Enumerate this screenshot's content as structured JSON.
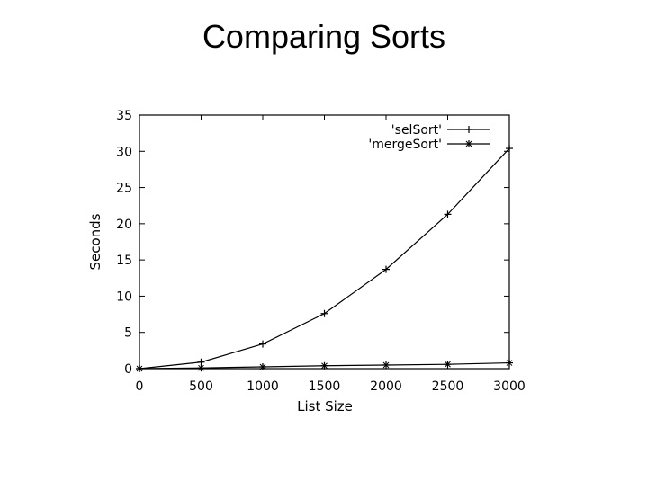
{
  "slide": {
    "title": "Comparing Sorts"
  },
  "chart_data": {
    "type": "line",
    "title": "",
    "xlabel": "List Size",
    "ylabel": "Seconds",
    "xlim": [
      0,
      3000
    ],
    "ylim": [
      0,
      35
    ],
    "x_ticks": [
      0,
      500,
      1000,
      1500,
      2000,
      2500,
      3000
    ],
    "y_ticks": [
      0,
      5,
      10,
      15,
      20,
      25,
      30,
      35
    ],
    "legend_position": "top-right",
    "grid": false,
    "colors": {
      "line": "#000000",
      "background": "#ffffff"
    },
    "series": [
      {
        "name": "'selSort'",
        "marker": "plus",
        "x": [
          0,
          500,
          1000,
          1500,
          2000,
          2500,
          3000
        ],
        "y": [
          0,
          0.9,
          3.4,
          7.6,
          13.7,
          21.3,
          30.4
        ]
      },
      {
        "name": "'mergeSort'",
        "marker": "star",
        "x": [
          0,
          500,
          1000,
          1500,
          2000,
          2500,
          3000
        ],
        "y": [
          0,
          0.1,
          0.25,
          0.4,
          0.5,
          0.6,
          0.8
        ]
      }
    ]
  }
}
